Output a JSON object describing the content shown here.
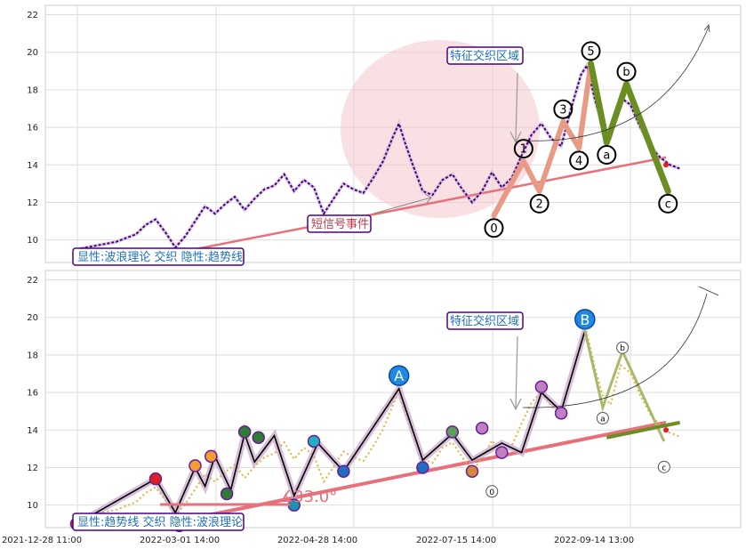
{
  "chart_data": [
    {
      "type": "line",
      "title": "",
      "xlabel": "",
      "ylabel": "",
      "ylim": [
        8.8,
        22.5
      ],
      "yticks": [
        10,
        12,
        14,
        16,
        18,
        20,
        22
      ],
      "grid": true,
      "price_series": [
        [
          0,
          9.5
        ],
        [
          10,
          9.7
        ],
        [
          20,
          9.9
        ],
        [
          30,
          10.3
        ],
        [
          35,
          10.8
        ],
        [
          40,
          11.1
        ],
        [
          45,
          10.4
        ],
        [
          50,
          9.6
        ],
        [
          55,
          10.2
        ],
        [
          60,
          11.0
        ],
        [
          65,
          11.8
        ],
        [
          70,
          11.4
        ],
        [
          75,
          11.9
        ],
        [
          80,
          12.3
        ],
        [
          85,
          11.6
        ],
        [
          90,
          12.2
        ],
        [
          95,
          12.7
        ],
        [
          100,
          12.9
        ],
        [
          105,
          13.5
        ],
        [
          110,
          12.6
        ],
        [
          115,
          13.2
        ],
        [
          120,
          12.8
        ],
        [
          125,
          11.4
        ],
        [
          130,
          12.2
        ],
        [
          135,
          13.0
        ],
        [
          140,
          12.7
        ],
        [
          145,
          12.5
        ],
        [
          150,
          13.3
        ],
        [
          155,
          14.2
        ],
        [
          160,
          15.5
        ],
        [
          163,
          16.2
        ],
        [
          166,
          15.2
        ],
        [
          170,
          14.0
        ],
        [
          175,
          12.6
        ],
        [
          180,
          12.4
        ],
        [
          185,
          13.2
        ],
        [
          190,
          13.5
        ],
        [
          195,
          12.7
        ],
        [
          200,
          12.0
        ],
        [
          205,
          12.6
        ],
        [
          210,
          13.6
        ],
        [
          215,
          12.8
        ],
        [
          220,
          13.3
        ],
        [
          225,
          14.5
        ],
        [
          230,
          15.6
        ],
        [
          235,
          16.2
        ],
        [
          240,
          15.4
        ],
        [
          245,
          15.0
        ],
        [
          250,
          17.0
        ],
        [
          255,
          18.8
        ],
        [
          258,
          19.3
        ],
        [
          262,
          17.5
        ],
        [
          266,
          16.0
        ],
        [
          270,
          15.5
        ],
        [
          275,
          17.6
        ],
        [
          280,
          17.2
        ],
        [
          285,
          16.0
        ],
        [
          290,
          15.0
        ],
        [
          295,
          14.4
        ],
        [
          300,
          14.0
        ],
        [
          305,
          13.8
        ]
      ],
      "wave_points": [
        {
          "label": "0",
          "x": 211,
          "y": 11.3
        },
        {
          "label": "1",
          "x": 226,
          "y": 14.2
        },
        {
          "label": "2",
          "x": 234,
          "y": 12.6
        },
        {
          "label": "3",
          "x": 246,
          "y": 16.3
        },
        {
          "label": "4",
          "x": 254,
          "y": 14.9
        },
        {
          "label": "5",
          "x": 260,
          "y": 19.4
        },
        {
          "label": "a",
          "x": 268,
          "y": 15.2
        },
        {
          "label": "b",
          "x": 278,
          "y": 18.3
        },
        {
          "label": "c",
          "x": 299,
          "y": 12.6
        }
      ],
      "trend_line": [
        [
          40,
          9.1
        ],
        [
          298,
          14.4
        ]
      ],
      "annotations": {
        "feature_zone": "特征交织区域",
        "short_signal": "短信号事件",
        "mode_label": "显性:波浪理论 交织 隐性:趋势线"
      }
    },
    {
      "type": "line",
      "title": "",
      "xlabel": "",
      "ylabel": "",
      "ylim": [
        8.8,
        22.5
      ],
      "yticks": [
        10,
        12,
        14,
        16,
        18,
        20,
        22
      ],
      "grid": true,
      "xticks": [
        "2021-12-28 11:00",
        "2022-03-01 14:00",
        "2022-04-28 14:00",
        "2022-07-15 14:00",
        "2022-09-14 13:00"
      ],
      "big_points": [
        {
          "label": "A",
          "x": 163,
          "y": 16.9
        },
        {
          "label": "B",
          "x": 257,
          "y": 19.9
        }
      ],
      "small_points": [
        {
          "label": "a",
          "x": 266,
          "y": 15.2
        },
        {
          "label": "b",
          "x": 276,
          "y": 18.2
        },
        {
          "label": "c",
          "x": 297,
          "y": 12.6
        },
        {
          "label": "0",
          "x": 210,
          "y": 11.3
        }
      ],
      "trend_line": [
        [
          40,
          8.9
        ],
        [
          298,
          14.4
        ]
      ],
      "angle_label": "∡33.0°",
      "annotations": {
        "feature_zone": "特征交织区域",
        "mode_label": "显性:趋势线 交织 隐性:波浪理论"
      }
    }
  ],
  "colors": {
    "price": "#4b0082",
    "wave_up": "#e89a84",
    "wave_down": "#6b8e23",
    "trend": "#e8707a",
    "zone": "#f3c6cc",
    "label_border": "#4b0082",
    "label_text_blue": "#1e6fbf",
    "label_text_red": "#c0394b"
  }
}
